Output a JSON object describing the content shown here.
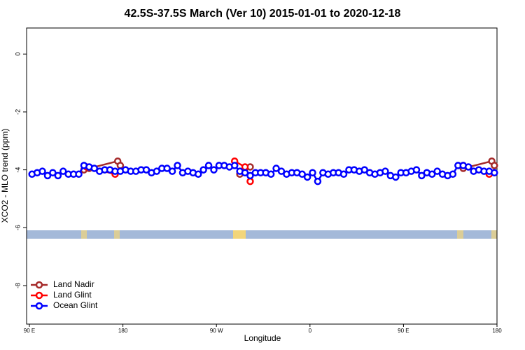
{
  "chart_data": {
    "type": "line",
    "title": "42.5S-37.5S March (Ver 10)   2015-01-01 to 2020-12-18",
    "xlabel": "Longitude",
    "ylabel": "XCO2 - MLO trend (ppm)",
    "xlim": [
      87.3,
      540
    ],
    "ylim": [
      -9.33,
      0.9
    ],
    "xticks": [
      {
        "value": 90,
        "label": "90 E"
      },
      180,
      {
        "value": 270,
        "label": "90 W"
      },
      {
        "value": 360,
        "label": "0"
      },
      {
        "value": 450,
        "label": "90 E"
      },
      {
        "value": 540,
        "label": "180"
      }
    ],
    "yticks": [
      0,
      -2,
      -4,
      -6,
      -8
    ],
    "legend": "bottom-left",
    "series": [
      {
        "name": "Land Nadir",
        "color": "#a52a2a",
        "x": [
          142.5,
          147.5,
          175,
          177.5,
          230,
          292.5,
          297.5,
          302.5,
          400,
          507.5,
          535,
          537.5
        ],
        "values": [
          -4.0,
          -3.95,
          -3.7,
          -3.85,
          null,
          -4.15,
          -3.95,
          -3.9,
          null,
          -3.95,
          -3.7,
          -3.85
        ]
      },
      {
        "name": "Land Glint",
        "color": "#ff0000",
        "x": [
          145,
          172.5,
          230,
          287.5,
          297.5,
          302.5,
          400,
          507.5,
          532.5
        ],
        "values": [
          -3.9,
          -4.15,
          null,
          -3.7,
          -3.9,
          -4.4,
          null,
          -3.85,
          -4.15
        ]
      },
      {
        "name": "Ocean Glint",
        "color": "#0000ff",
        "x": [
          92.5,
          97.5,
          102.5,
          107.5,
          112.5,
          117.5,
          122.5,
          127.5,
          132.5,
          137.5,
          142.5,
          147.5,
          152.5,
          157.5,
          162.5,
          167.5,
          172.5,
          177.5,
          182.5,
          187.5,
          192.5,
          197.5,
          202.5,
          207.5,
          212.5,
          217.5,
          222.5,
          227.5,
          232.5,
          237.5,
          242.5,
          247.5,
          252.5,
          257.5,
          262.5,
          267.5,
          272.5,
          277.5,
          282.5,
          287.5,
          292.5,
          297.5,
          302.5,
          307.5,
          312.5,
          317.5,
          322.5,
          327.5,
          332.5,
          337.5,
          342.5,
          347.5,
          352.5,
          357.5,
          362.5,
          367.5,
          372.5,
          377.5,
          382.5,
          387.5,
          392.5,
          397.5,
          402.5,
          407.5,
          412.5,
          417.5,
          422.5,
          427.5,
          432.5,
          437.5,
          442.5,
          447.5,
          452.5,
          457.5,
          462.5,
          467.5,
          472.5,
          477.5,
          482.5,
          487.5,
          492.5,
          497.5,
          502.5,
          507.5,
          512.5,
          517.5,
          522.5,
          527.5,
          532.5,
          537.5
        ],
        "values": [
          -4.15,
          -4.1,
          -4.05,
          -4.2,
          -4.1,
          -4.2,
          -4.05,
          -4.15,
          -4.15,
          -4.15,
          -3.85,
          -3.9,
          -3.95,
          -4.05,
          -4.0,
          -4.0,
          -4.05,
          -4.05,
          -4.0,
          -4.05,
          -4.05,
          -4.0,
          -4.0,
          -4.1,
          -4.05,
          -3.95,
          -3.95,
          -4.05,
          -3.85,
          -4.1,
          -4.05,
          -4.1,
          -4.15,
          -4.0,
          -3.85,
          -4.0,
          -3.85,
          -3.85,
          -3.9,
          -3.85,
          -4.05,
          -4.1,
          -4.2,
          -4.1,
          -4.1,
          -4.1,
          -4.15,
          -3.95,
          -4.05,
          -4.15,
          -4.1,
          -4.1,
          -4.15,
          -4.25,
          -4.1,
          -4.4,
          -4.1,
          -4.15,
          -4.1,
          -4.1,
          -4.15,
          -4.0,
          -4.0,
          -4.05,
          -4.0,
          -4.1,
          -4.15,
          -4.1,
          -4.05,
          -4.2,
          -4.25,
          -4.1,
          -4.1,
          -4.05,
          -4.0,
          -4.2,
          -4.1,
          -4.15,
          -4.05,
          -4.15,
          -4.2,
          -4.15,
          -3.85,
          -3.85,
          -3.9,
          -4.05,
          -4.0,
          -4.05,
          -4.05,
          -4.1
        ]
      }
    ]
  }
}
